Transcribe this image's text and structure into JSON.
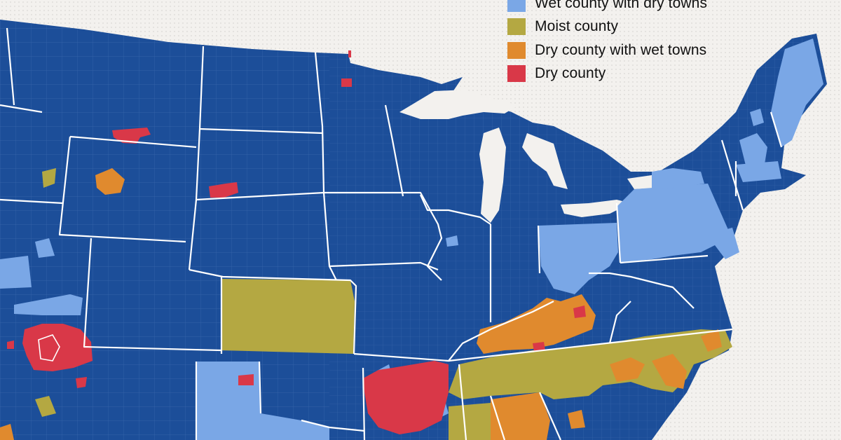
{
  "colors": {
    "wet": "#1c4e99",
    "wet_dry_towns": "#7aa7e6",
    "moist": "#b4a842",
    "dry_wet_towns": "#e08a2e",
    "dry": "#d93848",
    "background": "#f3f1ee",
    "borders": "#ffffff"
  },
  "legend": {
    "items": [
      {
        "key": "wet_dry_towns",
        "label": "Wet county with dry towns",
        "color": "#7aa7e6"
      },
      {
        "key": "moist",
        "label": "Moist county",
        "color": "#b4a842"
      },
      {
        "key": "dry_wet_towns",
        "label": "Dry county with wet towns",
        "color": "#e08a2e"
      },
      {
        "key": "dry",
        "label": "Dry county",
        "color": "#d93848"
      }
    ]
  }
}
